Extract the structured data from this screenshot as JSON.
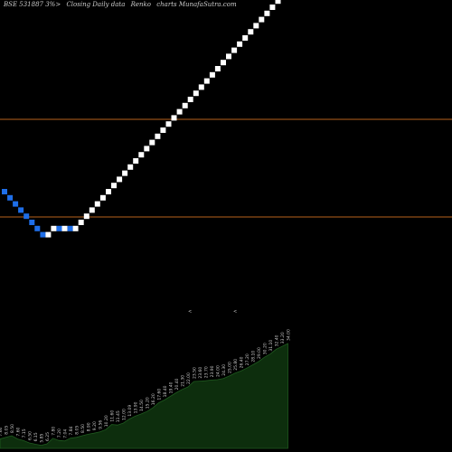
{
  "header": {
    "symbol": "BSE 531887 3%>",
    "description": "Closing Daily data",
    "chart_type": "Renko",
    "source": "charts MunafaSutra.com"
  },
  "colors": {
    "background": "#000000",
    "up_brick": "#ffffff",
    "down_brick": "#1e6ee8",
    "level_line": "#b8621b",
    "volume_fill": "#0d2e0d",
    "volume_stroke": "#1f5a1f",
    "text": "#cccccc"
  },
  "chart_data": {
    "type": "renko",
    "bricks": [
      "down",
      "down",
      "down",
      "down",
      "down",
      "down",
      "down",
      "down",
      "up",
      "up",
      "down",
      "up",
      "down",
      "up",
      "up",
      "up",
      "up",
      "up",
      "up",
      "up",
      "up",
      "up",
      "up",
      "up",
      "up",
      "up",
      "up",
      "up",
      "up",
      "up",
      "up",
      "up",
      "up",
      "up",
      "up",
      "up",
      "up",
      "up",
      "up",
      "up",
      "up",
      "up",
      "up",
      "up",
      "up",
      "up",
      "up",
      "up",
      "up",
      "up",
      "up",
      "up",
      "up"
    ],
    "level_lines": 2,
    "bottom_panel": {
      "values": [
        7.6,
        8.05,
        8.5,
        7.6,
        7.15,
        6.5,
        6.15,
        5.85,
        6.25,
        7.8,
        7.2,
        7.04,
        7.84,
        8.05,
        8.5,
        8.9,
        9.2,
        9.56,
        10.2,
        11.6,
        11.45,
        12.0,
        13.09,
        13.9,
        14.5,
        15.2,
        16.2,
        17.6,
        18.4,
        19.4,
        20.4,
        21.3,
        22.0,
        23.5,
        23.6,
        23.7,
        23.9,
        24.0,
        24.3,
        25.0,
        25.8,
        26.4,
        27.2,
        28.1,
        29.0,
        30.2,
        31.1,
        32.4,
        33.2,
        34.0
      ],
      "labels": [
        "7.60",
        "8.05",
        "8.50",
        "7.60",
        "7.15",
        "6.50",
        "6.15",
        "5.85",
        "6.25",
        "7.80",
        "7.20",
        "7.04",
        "7.84",
        "8.05",
        "8.50",
        "8.90",
        "9.20",
        "9.56",
        "10.20",
        "11.60",
        "11.45",
        "12.00",
        "13.09",
        "13.90",
        "14.50",
        "15.20",
        "16.20",
        "17.60",
        "18.40",
        "19.40",
        "20.40",
        "21.30",
        "22.00",
        "23.50",
        "23.60",
        "23.70",
        "23.90",
        "24.00",
        "24.30",
        "25.00",
        "25.80",
        "26.40",
        "27.20",
        "28.10",
        "29.00",
        "30.20",
        "31.10",
        "32.40",
        "33.20",
        "34.00"
      ],
      "markers": [
        "<",
        "<"
      ]
    }
  }
}
